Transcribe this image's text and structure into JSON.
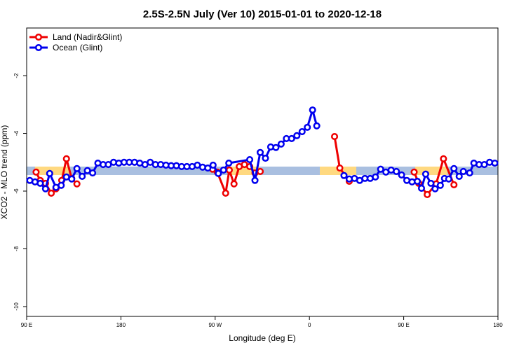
{
  "chart_data": {
    "type": "line",
    "title": "2.5S-2.5N July (Ver 10)   2015-01-01 to 2020-12-18",
    "xlabel": "Longitude (deg E)",
    "ylabel": "XCO2 - MLO trend (ppm)",
    "xlim": [
      -270,
      180
    ],
    "ylim": [
      -10.34,
      -0.35
    ],
    "xticks": [
      {
        "value": -270,
        "label": "90 E"
      },
      {
        "value": -180,
        "label": "180"
      },
      {
        "value": -90,
        "label": "90 W"
      },
      0,
      {
        "value": 90,
        "label": "90 E"
      },
      180
    ],
    "yticks": [
      -2,
      -4,
      -6,
      -8,
      -10
    ],
    "legend": "top-left",
    "series": [
      {
        "name": "Land (Nadir&Glint)",
        "color": "#ee0000",
        "x": [
          -261,
          -257,
          -252,
          -246.5,
          -242,
          -236.5,
          -232,
          -227,
          -222,
          -200,
          -92.5,
          -88,
          -80,
          -76.5,
          -72,
          -67,
          -62,
          -57,
          -52,
          -47,
          0,
          24,
          29,
          38,
          70,
          100,
          104.4,
          112.5,
          121,
          128,
          138
        ],
        "values": [
          -5.34,
          -5.63,
          -5.73,
          -6.07,
          -5.92,
          -5.63,
          -4.88,
          -5.56,
          -5.75,
          null,
          -5.24,
          -5.34,
          -6.07,
          -5.27,
          -5.75,
          -5.15,
          -5.08,
          -5.15,
          -5.37,
          -5.32,
          null,
          -4.11,
          -5.2,
          -5.66,
          null,
          -5.34,
          -5.73,
          -6.12,
          -5.75,
          -4.88,
          -5.78
        ]
      },
      {
        "name": "Ocean (Glint)",
        "color": "#0000ee",
        "x": [
          -267,
          -262,
          -257,
          -252,
          -248,
          -242,
          -237,
          -232,
          -227,
          -222,
          -217,
          -212,
          -207,
          -202,
          -197,
          -192,
          -187,
          -182,
          -177,
          -172,
          -167,
          -162,
          -157,
          -152,
          -147,
          -142,
          -137,
          -132,
          -127,
          -122,
          -117,
          -112,
          -107,
          -102,
          -97,
          -92,
          -87,
          -82,
          -77,
          -57,
          -52,
          -47,
          -42,
          -37,
          -32,
          -27,
          -22,
          -17,
          -12,
          -7,
          -2,
          3,
          7,
          20,
          33,
          38,
          43,
          48,
          53,
          58,
          63,
          68,
          73,
          78,
          83,
          88,
          93,
          98,
          103,
          107,
          111,
          116,
          120,
          125,
          129,
          133,
          138,
          143,
          147,
          153,
          157,
          162,
          167,
          172,
          177
        ],
        "values": [
          -5.63,
          -5.68,
          -5.73,
          -5.92,
          -5.39,
          -5.87,
          -5.8,
          -5.51,
          -5.58,
          -5.22,
          -5.49,
          -5.29,
          -5.37,
          -5.03,
          -5.08,
          -5.08,
          -5.0,
          -5.03,
          -5.0,
          -5.0,
          -5.0,
          -5.03,
          -5.08,
          -5.0,
          -5.08,
          -5.08,
          -5.1,
          -5.12,
          -5.12,
          -5.15,
          -5.15,
          -5.15,
          -5.1,
          -5.17,
          -5.2,
          -5.1,
          -5.39,
          -5.27,
          -5.03,
          -4.91,
          -5.63,
          -4.66,
          -4.86,
          -4.47,
          -4.49,
          -4.37,
          -4.18,
          -4.18,
          -4.08,
          -3.94,
          -3.79,
          -3.19,
          -3.74,
          null,
          -5.46,
          -5.58,
          -5.56,
          -5.63,
          -5.56,
          -5.56,
          -5.51,
          -5.24,
          -5.34,
          -5.27,
          -5.32,
          -5.44,
          -5.63,
          -5.68,
          -5.66,
          -5.9,
          -5.41,
          -5.73,
          -5.92,
          -5.8,
          -5.56,
          -5.58,
          -5.22,
          -5.49,
          -5.32,
          -5.37,
          -5.03,
          -5.08,
          -5.08,
          -5.0,
          -5.03
        ]
      }
    ]
  }
}
